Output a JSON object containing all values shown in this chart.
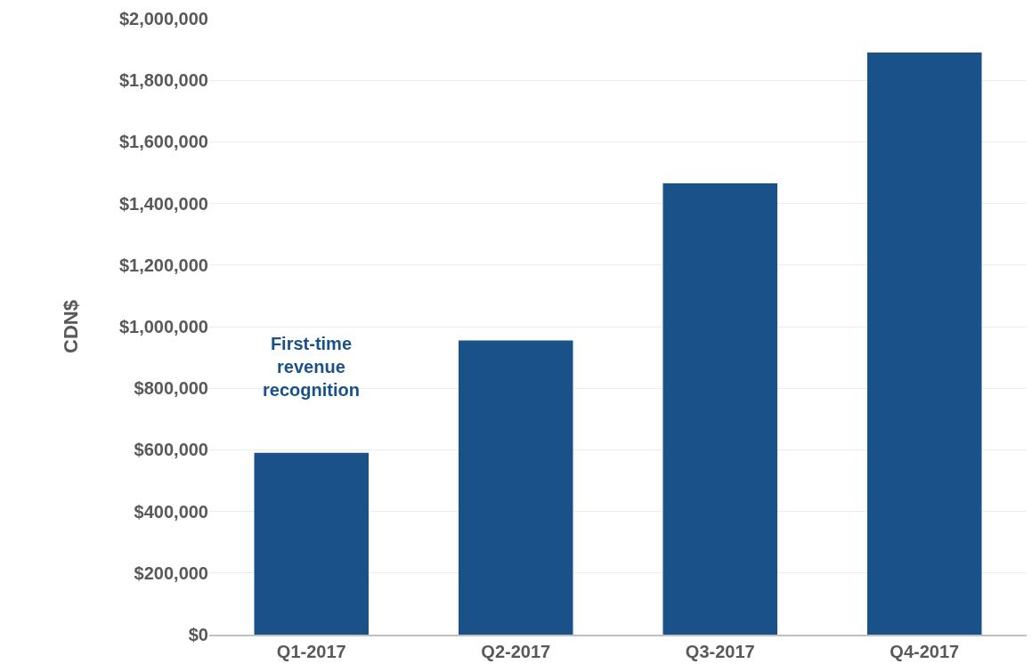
{
  "chart_data": {
    "type": "bar",
    "ylabel": "CDN$",
    "categories": [
      "Q1-2017",
      "Q2-2017",
      "Q3-2017",
      "Q4-2017"
    ],
    "values": [
      590000,
      955000,
      1465000,
      1890000
    ],
    "color": "#1a5189",
    "ylim": [
      0,
      2000000
    ],
    "yticks": [
      {
        "value": 0,
        "label": "$0"
      },
      {
        "value": 200000,
        "label": "$200,000"
      },
      {
        "value": 400000,
        "label": "$400,000"
      },
      {
        "value": 600000,
        "label": "$600,000"
      },
      {
        "value": 800000,
        "label": "$800,000"
      },
      {
        "value": 1000000,
        "label": "$1,000,000"
      },
      {
        "value": 1200000,
        "label": "$1,200,000"
      },
      {
        "value": 1400000,
        "label": "$1,400,000"
      },
      {
        "value": 1600000,
        "label": "$1,600,000"
      },
      {
        "value": 1800000,
        "label": "$1,800,000"
      },
      {
        "value": 2000000,
        "label": "$2,000,000"
      }
    ],
    "grid": "y",
    "annotations": [
      "First-time revenue recognition"
    ]
  }
}
